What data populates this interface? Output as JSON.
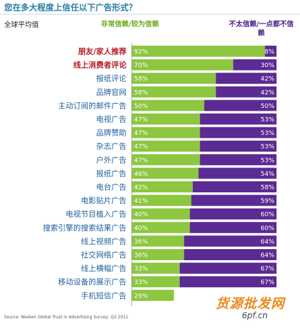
{
  "header": {
    "title": "您在多大程度上信任以下广告形式？",
    "subtitle": "全球平均值",
    "legend_trust": "非常信赖/较为信赖",
    "legend_distrust": "不太信赖/一点都不信赖"
  },
  "footer": {
    "source": "Source: Nielsen Global Trust in Advertising Survey, Q3 2011",
    "watermark_main": "货源批发网",
    "watermark_site": "6pf.cn"
  },
  "colors": {
    "trust": "#8dc63f",
    "distrust": "#5b2a92",
    "label_default": "#1f5f9e",
    "label_highlight": "#b51f24",
    "value_text": "#ffffff"
  },
  "chart_data": {
    "type": "bar",
    "stacked": true,
    "orientation": "horizontal",
    "title": "您在多大程度上信任以下广告形式？",
    "subtitle": "全球平均值",
    "categories": [
      "朋友/家人推荐",
      "线上消费者评论",
      "报纸评论",
      "品牌官网",
      "主动订阅的邮件广告",
      "电视广告",
      "品牌赞助",
      "杂志广告",
      "户外广告",
      "报纸广告",
      "电台广告",
      "电影贴片广告",
      "电视节目植入广告",
      "搜索引擎的搜索结果广告",
      "线上视频广告",
      "社交网络广告",
      "线上横幅广告",
      "移动设备的展示广告",
      "手机短信广告"
    ],
    "highlight": [
      true,
      true,
      false,
      false,
      false,
      false,
      false,
      false,
      false,
      false,
      false,
      false,
      false,
      false,
      false,
      false,
      false,
      false,
      false
    ],
    "series": [
      {
        "name": "非常信赖/较为信赖",
        "values": [
          92,
          70,
          58,
          58,
          50,
          47,
          47,
          47,
          47,
          46,
          42,
          41,
          40,
          40,
          36,
          36,
          33,
          33,
          29
        ]
      },
      {
        "name": "不太信赖/一点都不信赖",
        "values": [
          8,
          30,
          42,
          42,
          50,
          53,
          53,
          53,
          53,
          54,
          58,
          59,
          60,
          60,
          64,
          64,
          67,
          67,
          null
        ]
      }
    ],
    "value_format": "%",
    "xlim": [
      0,
      100
    ],
    "grid": false,
    "legend": "top"
  }
}
